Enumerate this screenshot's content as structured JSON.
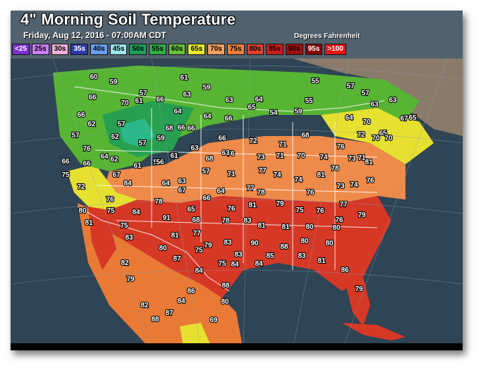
{
  "header": {
    "title": "4\" Morning Soil Temperature",
    "subtitle": "Friday, Aug 12, 2016 - 07:00AM CDT",
    "unit": "Degrees Fahrenheit"
  },
  "legend": [
    {
      "label": "<25",
      "color": "#7b30d0",
      "text_color": "#ffffff"
    },
    {
      "label": "25s",
      "color": "#c87ef0",
      "text_color": "#000000"
    },
    {
      "label": "30s",
      "color": "#f0b0d8",
      "text_color": "#000000"
    },
    {
      "label": "35s",
      "color": "#2a3aa8",
      "text_color": "#ffffff"
    },
    {
      "label": "40s",
      "color": "#6a9ef0",
      "text_color": "#000000"
    },
    {
      "label": "45s",
      "color": "#9be6ea",
      "text_color": "#000000"
    },
    {
      "label": "50s",
      "color": "#1fa05a",
      "text_color": "#000000"
    },
    {
      "label": "55s",
      "color": "#2fae46",
      "text_color": "#000000"
    },
    {
      "label": "60s",
      "color": "#66c23a",
      "text_color": "#000000"
    },
    {
      "label": "65s",
      "color": "#e8e830",
      "text_color": "#000000"
    },
    {
      "label": "70s",
      "color": "#f2a060",
      "text_color": "#000000"
    },
    {
      "label": "75s",
      "color": "#ee7f3a",
      "text_color": "#000000"
    },
    {
      "label": "80s",
      "color": "#e04030",
      "text_color": "#000000"
    },
    {
      "label": "85s",
      "color": "#c81e1e",
      "text_color": "#000000"
    },
    {
      "label": "90s",
      "color": "#a01010",
      "text_color": "#000000"
    },
    {
      "label": "95s",
      "color": "#800808",
      "text_color": "#ffffff"
    },
    {
      "label": ">100",
      "color": "#e81818",
      "text_color": "#ffffff"
    }
  ],
  "map": {
    "ocean_color": "#2f4454",
    "land_color": "#8a8070",
    "readings": [
      {
        "v": "60"
      },
      {
        "v": "59"
      },
      {
        "v": "61"
      },
      {
        "v": "55"
      },
      {
        "v": "57"
      },
      {
        "v": "57"
      },
      {
        "v": "59"
      },
      {
        "v": "63"
      },
      {
        "v": "57"
      },
      {
        "v": "65"
      },
      {
        "v": "63"
      },
      {
        "v": "66"
      },
      {
        "v": "70"
      },
      {
        "v": "61"
      },
      {
        "v": "66"
      },
      {
        "v": "63"
      },
      {
        "v": "64"
      },
      {
        "v": "55"
      },
      {
        "v": "63"
      },
      {
        "v": "67"
      },
      {
        "v": "66"
      },
      {
        "v": "62"
      },
      {
        "v": "57"
      },
      {
        "v": "68"
      },
      {
        "v": "64"
      },
      {
        "v": "64"
      },
      {
        "v": "66"
      },
      {
        "v": "65"
      },
      {
        "v": "54"
      },
      {
        "v": "59"
      },
      {
        "v": "64"
      },
      {
        "v": "70"
      },
      {
        "v": "65"
      },
      {
        "v": "57"
      },
      {
        "v": "62"
      },
      {
        "v": "57"
      },
      {
        "v": "59"
      },
      {
        "v": "66"
      },
      {
        "v": "66"
      },
      {
        "v": "66"
      },
      {
        "v": "72"
      },
      {
        "v": "71"
      },
      {
        "v": "68"
      },
      {
        "v": "72"
      },
      {
        "v": "70"
      },
      {
        "v": "70"
      },
      {
        "v": "76"
      },
      {
        "v": "64"
      },
      {
        "v": "62"
      },
      {
        "v": "59"
      },
      {
        "v": "58"
      },
      {
        "v": "63"
      },
      {
        "v": "68"
      },
      {
        "v": "76"
      },
      {
        "v": "73"
      },
      {
        "v": "71"
      },
      {
        "v": "70"
      },
      {
        "v": "74"
      },
      {
        "v": "76"
      },
      {
        "v": "73"
      },
      {
        "v": "71"
      },
      {
        "v": "66"
      },
      {
        "v": "66"
      },
      {
        "v": "61"
      },
      {
        "v": "61"
      },
      {
        "v": "63"
      },
      {
        "v": "81"
      },
      {
        "v": "75"
      },
      {
        "v": "67"
      },
      {
        "v": "56"
      },
      {
        "v": "57"
      },
      {
        "v": "71"
      },
      {
        "v": "77"
      },
      {
        "v": "74"
      },
      {
        "v": "74"
      },
      {
        "v": "81"
      },
      {
        "v": "78"
      },
      {
        "v": "76"
      },
      {
        "v": "72"
      },
      {
        "v": "84"
      },
      {
        "v": "64"
      },
      {
        "v": "63"
      },
      {
        "v": "67"
      },
      {
        "v": "64"
      },
      {
        "v": "77"
      },
      {
        "v": "78"
      },
      {
        "v": "76"
      },
      {
        "v": "73"
      },
      {
        "v": "74"
      },
      {
        "v": "76"
      },
      {
        "v": "78"
      },
      {
        "v": "66"
      },
      {
        "v": "76"
      },
      {
        "v": "81"
      },
      {
        "v": "79"
      },
      {
        "v": "77"
      },
      {
        "v": "80"
      },
      {
        "v": "75"
      },
      {
        "v": "84"
      },
      {
        "v": "65"
      },
      {
        "v": "75"
      },
      {
        "v": "76"
      },
      {
        "v": "76"
      },
      {
        "v": "79"
      },
      {
        "v": "81"
      },
      {
        "v": "75"
      },
      {
        "v": "91"
      },
      {
        "v": "68"
      },
      {
        "v": "78"
      },
      {
        "v": "83"
      },
      {
        "v": "81"
      },
      {
        "v": "81"
      },
      {
        "v": "80"
      },
      {
        "v": "80"
      },
      {
        "v": "83"
      },
      {
        "v": "81"
      },
      {
        "v": "77"
      },
      {
        "v": "79"
      },
      {
        "v": "83"
      },
      {
        "v": "90"
      },
      {
        "v": "88"
      },
      {
        "v": "80"
      },
      {
        "v": "80"
      },
      {
        "v": "80"
      },
      {
        "v": "75"
      },
      {
        "v": "83"
      },
      {
        "v": "85"
      },
      {
        "v": "83"
      },
      {
        "v": "81"
      },
      {
        "v": "82"
      },
      {
        "v": "87"
      },
      {
        "v": "75"
      },
      {
        "v": "84"
      },
      {
        "v": "84"
      },
      {
        "v": "86"
      },
      {
        "v": "79"
      },
      {
        "v": "84"
      },
      {
        "v": "88"
      },
      {
        "v": "86"
      },
      {
        "v": "79"
      },
      {
        "v": "82"
      },
      {
        "v": "84"
      },
      {
        "v": "80"
      },
      {
        "v": "88"
      },
      {
        "v": "87"
      },
      {
        "v": "69"
      },
      {
        "v": "84"
      }
    ]
  }
}
